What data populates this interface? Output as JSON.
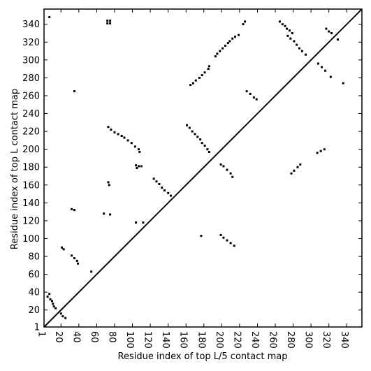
{
  "chart_data": {
    "type": "scatter",
    "title": "",
    "xlabel": "Residue index of top L/5 contact map",
    "ylabel": "Residue index of top L contact map",
    "xlim": [
      1,
      357
    ],
    "ylim": [
      1,
      357
    ],
    "xticks": [
      1,
      20,
      40,
      60,
      80,
      100,
      120,
      140,
      160,
      180,
      200,
      220,
      240,
      260,
      280,
      300,
      320,
      340
    ],
    "yticks": [
      1,
      20,
      40,
      60,
      80,
      100,
      120,
      140,
      160,
      180,
      200,
      220,
      240,
      260,
      280,
      300,
      320,
      340
    ],
    "grid": false,
    "legend": "none",
    "diagonal_line": [
      [
        1,
        1
      ],
      [
        357,
        357
      ]
    ],
    "colors": {
      "points": "#000000",
      "line": "#000000",
      "frame": "#000000",
      "background": "#ffffff"
    },
    "series": [
      {
        "points_upper": [
          [
            7,
            348
          ],
          [
            72,
            344
          ],
          [
            75,
            344
          ],
          [
            72,
            341
          ],
          [
            75,
            341
          ],
          [
            35,
            265
          ],
          [
            73,
            225
          ],
          [
            76,
            222
          ],
          [
            80,
            219
          ],
          [
            84,
            217
          ],
          [
            88,
            215
          ],
          [
            91,
            213
          ],
          [
            95,
            210
          ],
          [
            99,
            207
          ],
          [
            103,
            203
          ],
          [
            107,
            200
          ],
          [
            108,
            197
          ],
          [
            104,
            182
          ],
          [
            107,
            181
          ],
          [
            110,
            181
          ],
          [
            105,
            179
          ],
          [
            73,
            163
          ],
          [
            74,
            160
          ],
          [
            32,
            133
          ],
          [
            35,
            132
          ],
          [
            68,
            128
          ],
          [
            75,
            127
          ],
          [
            104,
            118
          ],
          [
            112,
            118
          ],
          [
            21,
            90
          ],
          [
            23,
            88
          ],
          [
            32,
            81
          ],
          [
            35,
            78
          ],
          [
            38,
            75
          ],
          [
            39,
            72
          ],
          [
            54,
            63
          ],
          [
            165,
            272
          ],
          [
            168,
            274
          ],
          [
            171,
            277
          ],
          [
            175,
            280
          ],
          [
            178,
            283
          ],
          [
            181,
            286
          ],
          [
            185,
            290
          ],
          [
            186,
            293
          ],
          [
            161,
            227
          ],
          [
            164,
            224
          ],
          [
            167,
            220
          ],
          [
            170,
            217
          ],
          [
            173,
            214
          ],
          [
            176,
            211
          ],
          [
            178,
            207
          ],
          [
            181,
            204
          ],
          [
            184,
            200
          ],
          [
            186,
            197
          ],
          [
            193,
            304
          ],
          [
            195,
            307
          ],
          [
            198,
            310
          ],
          [
            201,
            313
          ],
          [
            204,
            316
          ],
          [
            207,
            319
          ],
          [
            209,
            321
          ],
          [
            212,
            324
          ],
          [
            215,
            326
          ],
          [
            219,
            328
          ],
          [
            224,
            340
          ],
          [
            226,
            343
          ],
          [
            228,
            265
          ],
          [
            232,
            262
          ],
          [
            236,
            258
          ],
          [
            239,
            256
          ],
          [
            265,
            343
          ],
          [
            268,
            340
          ],
          [
            271,
            338
          ],
          [
            273,
            335
          ],
          [
            276,
            333
          ],
          [
            279,
            330
          ],
          [
            274,
            327
          ],
          [
            277,
            324
          ],
          [
            281,
            321
          ],
          [
            284,
            317
          ],
          [
            287,
            313
          ],
          [
            290,
            310
          ],
          [
            294,
            306
          ],
          [
            308,
            296
          ],
          [
            312,
            292
          ],
          [
            316,
            288
          ],
          [
            322,
            281
          ],
          [
            336,
            274
          ],
          [
            317,
            335
          ],
          [
            320,
            332
          ],
          [
            323,
            330
          ],
          [
            330,
            323
          ]
        ],
        "points_lower": [
          [
            5,
            35
          ],
          [
            7,
            38
          ],
          [
            8,
            32
          ],
          [
            10,
            30
          ],
          [
            11,
            27
          ],
          [
            12,
            24
          ],
          [
            14,
            22
          ],
          [
            20,
            16
          ],
          [
            22,
            13
          ],
          [
            25,
            11
          ],
          [
            124,
            167
          ],
          [
            127,
            164
          ],
          [
            130,
            161
          ],
          [
            133,
            157
          ],
          [
            136,
            154
          ],
          [
            140,
            151
          ],
          [
            143,
            148
          ],
          [
            199,
            183
          ],
          [
            202,
            181
          ],
          [
            206,
            177
          ],
          [
            210,
            173
          ],
          [
            212,
            169
          ],
          [
            199,
            104
          ],
          [
            202,
            101
          ],
          [
            206,
            98
          ],
          [
            210,
            95
          ],
          [
            214,
            92
          ],
          [
            177,
            103
          ],
          [
            278,
            173
          ],
          [
            281,
            176
          ],
          [
            285,
            180
          ],
          [
            288,
            183
          ],
          [
            307,
            196
          ],
          [
            311,
            198
          ],
          [
            315,
            200
          ]
        ]
      }
    ]
  }
}
